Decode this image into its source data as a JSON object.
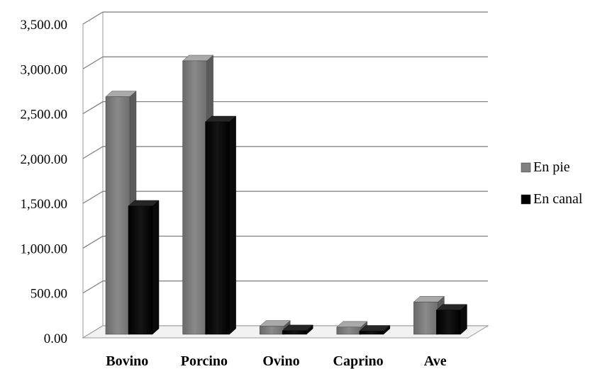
{
  "chart_data": {
    "type": "bar",
    "style": "3d-clustered-column",
    "categories": [
      "Bovino",
      "Porcino",
      "Ovino",
      "Caprino",
      "Ave"
    ],
    "series": [
      {
        "name": "En pie",
        "values": [
          2650,
          3050,
          90,
          80,
          360
        ],
        "color": "#808080"
      },
      {
        "name": "En canal",
        "values": [
          1430,
          2370,
          40,
          35,
          270
        ],
        "color": "#000000"
      }
    ],
    "ylim": [
      0,
      3500
    ],
    "yticks": [
      "0.00",
      "500.00",
      "1,000.00",
      "1,500.00",
      "2,000.00",
      "2,500.00",
      "3,000.00",
      "3,500.00"
    ],
    "grid": true,
    "legend_position": "right",
    "title": "",
    "xlabel": "",
    "ylabel": ""
  }
}
